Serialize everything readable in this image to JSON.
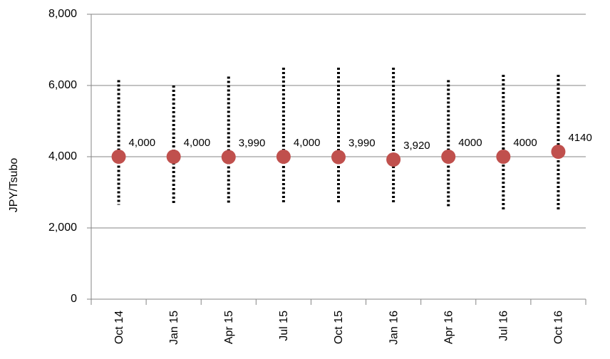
{
  "chart_data": {
    "type": "range-dot",
    "y_label": "JPY/Tsubo",
    "categories": [
      "Oct 14",
      "Jan 15",
      "Apr 15",
      "Jul 15",
      "Oct 15",
      "Jan 16",
      "Apr 16",
      "Jul 16",
      "Oct 16"
    ],
    "values": [
      4000,
      4000,
      3990,
      4000,
      3990,
      3920,
      4000,
      4000,
      4140
    ],
    "value_labels": [
      "4,000",
      "4,000",
      "3,990",
      "4,000",
      "3,990",
      "3,920",
      "4000",
      "4000",
      "4140"
    ],
    "low": [
      2650,
      2700,
      2650,
      2700,
      2700,
      2700,
      2550,
      2500,
      2500
    ],
    "high": [
      6150,
      6000,
      6250,
      6500,
      6500,
      6500,
      6150,
      6300,
      6300
    ],
    "color": "#c0504d",
    "range_color": "#000000",
    "ylim": [
      0,
      8000
    ],
    "yticks": [
      0,
      {
        "value": 2000,
        "label": "2,000"
      },
      {
        "value": 4000,
        "label": "4,000"
      },
      {
        "value": 6000,
        "label": "6,000"
      },
      {
        "value": 8000,
        "label": "8,000"
      }
    ],
    "grid": true
  }
}
